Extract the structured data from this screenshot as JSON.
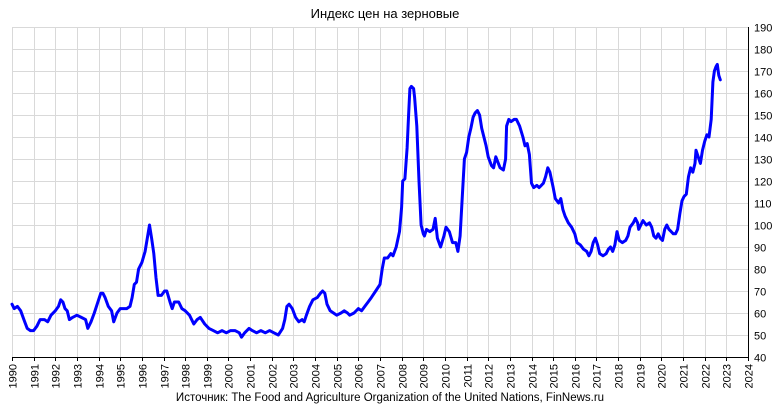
{
  "title": "Индекс цен на зерновые",
  "source": "Источник: The Food and Agriculture Organization of the United Nations, FinNews.ru",
  "colors": {
    "line": "#0000ff",
    "grid": "#d9d9d9"
  },
  "chart_data": {
    "type": "line",
    "title": "Индекс цен на зерновые",
    "xlabel": "",
    "ylabel": "",
    "xlim": [
      1990,
      2024
    ],
    "ylim": [
      40,
      190
    ],
    "yticks": [
      40,
      50,
      60,
      70,
      80,
      90,
      100,
      110,
      120,
      130,
      140,
      150,
      160,
      170,
      180,
      190
    ],
    "xticks": [
      1990,
      1991,
      1992,
      1993,
      1994,
      1995,
      1996,
      1997,
      1998,
      1999,
      2000,
      2001,
      2002,
      2003,
      2004,
      2005,
      2006,
      2007,
      2008,
      2009,
      2010,
      2011,
      2012,
      2013,
      2014,
      2015,
      2016,
      2017,
      2018,
      2019,
      2020,
      2021,
      2022,
      2023,
      2024
    ],
    "y_axis_side": "right",
    "grid": true,
    "legend": "none",
    "series": [
      {
        "points": [
          [
            1990.0,
            64
          ],
          [
            1990.1,
            62
          ],
          [
            1990.25,
            63
          ],
          [
            1990.4,
            61
          ],
          [
            1990.55,
            57
          ],
          [
            1990.7,
            53
          ],
          [
            1990.85,
            52
          ],
          [
            1991.0,
            52
          ],
          [
            1991.15,
            54
          ],
          [
            1991.3,
            57
          ],
          [
            1991.5,
            57
          ],
          [
            1991.65,
            56
          ],
          [
            1991.8,
            59
          ],
          [
            1992.0,
            61
          ],
          [
            1992.15,
            63
          ],
          [
            1992.25,
            66
          ],
          [
            1992.35,
            65
          ],
          [
            1992.45,
            62
          ],
          [
            1992.55,
            61
          ],
          [
            1992.65,
            57
          ],
          [
            1992.8,
            58
          ],
          [
            1993.0,
            59
          ],
          [
            1993.2,
            58
          ],
          [
            1993.4,
            57
          ],
          [
            1993.5,
            53
          ],
          [
            1993.65,
            56
          ],
          [
            1993.8,
            60
          ],
          [
            1994.0,
            66
          ],
          [
            1994.1,
            69
          ],
          [
            1994.2,
            69
          ],
          [
            1994.3,
            67
          ],
          [
            1994.45,
            63
          ],
          [
            1994.6,
            61
          ],
          [
            1994.7,
            56
          ],
          [
            1994.85,
            60
          ],
          [
            1995.0,
            62
          ],
          [
            1995.15,
            62
          ],
          [
            1995.3,
            62
          ],
          [
            1995.45,
            63
          ],
          [
            1995.55,
            67
          ],
          [
            1995.65,
            73
          ],
          [
            1995.75,
            74
          ],
          [
            1995.85,
            80
          ],
          [
            1996.0,
            83
          ],
          [
            1996.15,
            88
          ],
          [
            1996.25,
            94
          ],
          [
            1996.35,
            100
          ],
          [
            1996.45,
            94
          ],
          [
            1996.55,
            87
          ],
          [
            1996.65,
            76
          ],
          [
            1996.75,
            68
          ],
          [
            1996.9,
            68
          ],
          [
            1997.05,
            70
          ],
          [
            1997.15,
            70
          ],
          [
            1997.3,
            65
          ],
          [
            1997.4,
            62
          ],
          [
            1997.5,
            65
          ],
          [
            1997.7,
            65
          ],
          [
            1997.85,
            62
          ],
          [
            1998.0,
            61
          ],
          [
            1998.2,
            59
          ],
          [
            1998.4,
            55
          ],
          [
            1998.55,
            57
          ],
          [
            1998.7,
            58
          ],
          [
            1998.9,
            55
          ],
          [
            1999.1,
            53
          ],
          [
            1999.3,
            52
          ],
          [
            1999.5,
            51
          ],
          [
            1999.7,
            52
          ],
          [
            1999.9,
            51
          ],
          [
            2000.1,
            52
          ],
          [
            2000.3,
            52
          ],
          [
            2000.5,
            51
          ],
          [
            2000.6,
            49
          ],
          [
            2000.75,
            51
          ],
          [
            2000.95,
            53
          ],
          [
            2001.1,
            52
          ],
          [
            2001.3,
            51
          ],
          [
            2001.5,
            52
          ],
          [
            2001.7,
            51
          ],
          [
            2001.9,
            52
          ],
          [
            2002.1,
            51
          ],
          [
            2002.3,
            50
          ],
          [
            2002.5,
            53
          ],
          [
            2002.6,
            57
          ],
          [
            2002.7,
            63
          ],
          [
            2002.8,
            64
          ],
          [
            2002.95,
            62
          ],
          [
            2003.1,
            58
          ],
          [
            2003.25,
            56
          ],
          [
            2003.4,
            57
          ],
          [
            2003.5,
            56
          ],
          [
            2003.6,
            59
          ],
          [
            2003.75,
            63
          ],
          [
            2003.9,
            66
          ],
          [
            2004.1,
            67
          ],
          [
            2004.25,
            69
          ],
          [
            2004.35,
            70
          ],
          [
            2004.45,
            69
          ],
          [
            2004.55,
            64
          ],
          [
            2004.7,
            61
          ],
          [
            2004.85,
            60
          ],
          [
            2005.0,
            59
          ],
          [
            2005.2,
            60
          ],
          [
            2005.35,
            61
          ],
          [
            2005.5,
            60
          ],
          [
            2005.6,
            59
          ],
          [
            2005.8,
            60
          ],
          [
            2006.0,
            62
          ],
          [
            2006.15,
            61
          ],
          [
            2006.3,
            63
          ],
          [
            2006.45,
            65
          ],
          [
            2006.6,
            67
          ],
          [
            2006.8,
            70
          ],
          [
            2007.0,
            73
          ],
          [
            2007.1,
            80
          ],
          [
            2007.2,
            85
          ],
          [
            2007.35,
            85
          ],
          [
            2007.5,
            87
          ],
          [
            2007.6,
            86
          ],
          [
            2007.75,
            90
          ],
          [
            2007.9,
            97
          ],
          [
            2008.0,
            108
          ],
          [
            2008.05,
            120
          ],
          [
            2008.15,
            121
          ],
          [
            2008.25,
            135
          ],
          [
            2008.32,
            150
          ],
          [
            2008.38,
            162
          ],
          [
            2008.45,
            163
          ],
          [
            2008.55,
            162
          ],
          [
            2008.6,
            158
          ],
          [
            2008.7,
            145
          ],
          [
            2008.8,
            120
          ],
          [
            2008.9,
            100
          ],
          [
            2009.0,
            96
          ],
          [
            2009.05,
            95
          ],
          [
            2009.15,
            98
          ],
          [
            2009.3,
            97
          ],
          [
            2009.45,
            98
          ],
          [
            2009.55,
            103
          ],
          [
            2009.65,
            94
          ],
          [
            2009.8,
            90
          ],
          [
            2009.95,
            95
          ],
          [
            2010.05,
            99
          ],
          [
            2010.2,
            97
          ],
          [
            2010.35,
            92
          ],
          [
            2010.5,
            92
          ],
          [
            2010.6,
            88
          ],
          [
            2010.7,
            95
          ],
          [
            2010.8,
            113
          ],
          [
            2010.9,
            130
          ],
          [
            2011.0,
            133
          ],
          [
            2011.1,
            140
          ],
          [
            2011.2,
            144
          ],
          [
            2011.3,
            149
          ],
          [
            2011.4,
            151
          ],
          [
            2011.5,
            152
          ],
          [
            2011.6,
            150
          ],
          [
            2011.7,
            144
          ],
          [
            2011.8,
            140
          ],
          [
            2011.9,
            136
          ],
          [
            2012.0,
            131
          ],
          [
            2012.15,
            127
          ],
          [
            2012.25,
            126
          ],
          [
            2012.35,
            131
          ],
          [
            2012.55,
            126
          ],
          [
            2012.7,
            125
          ],
          [
            2012.8,
            130
          ],
          [
            2012.85,
            145
          ],
          [
            2012.95,
            148
          ],
          [
            2013.05,
            147
          ],
          [
            2013.2,
            148
          ],
          [
            2013.3,
            148
          ],
          [
            2013.45,
            145
          ],
          [
            2013.6,
            140
          ],
          [
            2013.7,
            136
          ],
          [
            2013.8,
            137
          ],
          [
            2013.9,
            132
          ],
          [
            2014.0,
            119
          ],
          [
            2014.1,
            117
          ],
          [
            2014.25,
            118
          ],
          [
            2014.35,
            117
          ],
          [
            2014.45,
            118
          ],
          [
            2014.55,
            119
          ],
          [
            2014.65,
            122
          ],
          [
            2014.75,
            126
          ],
          [
            2014.85,
            124
          ],
          [
            2015.0,
            117
          ],
          [
            2015.1,
            112
          ],
          [
            2015.25,
            110
          ],
          [
            2015.35,
            112
          ],
          [
            2015.45,
            107
          ],
          [
            2015.55,
            104
          ],
          [
            2015.7,
            101
          ],
          [
            2015.85,
            99
          ],
          [
            2016.0,
            96
          ],
          [
            2016.1,
            92
          ],
          [
            2016.25,
            91
          ],
          [
            2016.4,
            89
          ],
          [
            2016.55,
            88
          ],
          [
            2016.65,
            86
          ],
          [
            2016.75,
            88
          ],
          [
            2016.85,
            92
          ],
          [
            2016.95,
            94
          ],
          [
            2017.05,
            91
          ],
          [
            2017.15,
            87
          ],
          [
            2017.3,
            86
          ],
          [
            2017.45,
            87
          ],
          [
            2017.55,
            89
          ],
          [
            2017.65,
            90
          ],
          [
            2017.75,
            88
          ],
          [
            2017.85,
            91
          ],
          [
            2017.95,
            97
          ],
          [
            2018.05,
            93
          ],
          [
            2018.2,
            92
          ],
          [
            2018.35,
            93
          ],
          [
            2018.45,
            95
          ],
          [
            2018.55,
            99
          ],
          [
            2018.7,
            101
          ],
          [
            2018.8,
            103
          ],
          [
            2018.9,
            101
          ],
          [
            2018.95,
            98
          ],
          [
            2019.05,
            100
          ],
          [
            2019.15,
            102
          ],
          [
            2019.3,
            100
          ],
          [
            2019.45,
            101
          ],
          [
            2019.55,
            99
          ],
          [
            2019.65,
            95
          ],
          [
            2019.75,
            94
          ],
          [
            2019.85,
            96
          ],
          [
            2019.95,
            94
          ],
          [
            2020.05,
            93
          ],
          [
            2020.15,
            98
          ],
          [
            2020.25,
            100
          ],
          [
            2020.35,
            98
          ],
          [
            2020.45,
            97
          ],
          [
            2020.55,
            96
          ],
          [
            2020.65,
            96
          ],
          [
            2020.75,
            98
          ],
          [
            2020.85,
            105
          ],
          [
            2020.95,
            111
          ],
          [
            2021.05,
            113
          ],
          [
            2021.15,
            114
          ],
          [
            2021.25,
            122
          ],
          [
            2021.35,
            126
          ],
          [
            2021.45,
            124
          ],
          [
            2021.55,
            128
          ],
          [
            2021.6,
            134
          ],
          [
            2021.7,
            131
          ],
          [
            2021.8,
            128
          ],
          [
            2021.9,
            134
          ],
          [
            2022.0,
            138
          ],
          [
            2022.1,
            141
          ],
          [
            2022.2,
            140
          ],
          [
            2022.3,
            148
          ],
          [
            2022.38,
            165
          ],
          [
            2022.45,
            170
          ],
          [
            2022.52,
            172
          ],
          [
            2022.58,
            173
          ],
          [
            2022.65,
            168
          ],
          [
            2022.72,
            166
          ]
        ]
      }
    ]
  }
}
